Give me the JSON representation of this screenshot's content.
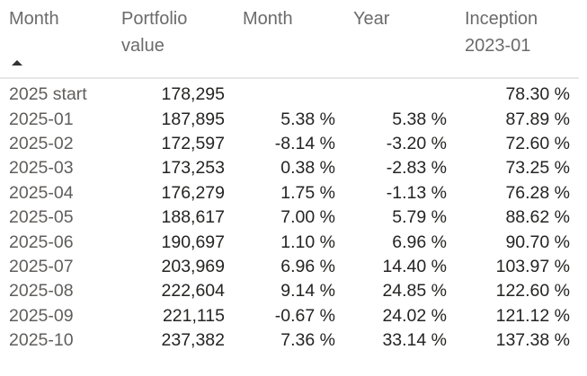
{
  "table": {
    "header": [
      "Month",
      "Portfolio value",
      "Month",
      "Year",
      "Inception 2023-01"
    ],
    "rows": [
      [
        "2025 start",
        "178,295",
        null,
        null,
        "78.30 %"
      ],
      [
        "2025-01",
        "187,895",
        "5.38 %",
        "5.38 %",
        "87.89 %"
      ],
      [
        "2025-02",
        "172,597",
        "-8.14 %",
        "-3.20 %",
        "72.60 %"
      ],
      [
        "2025-03",
        "173,253",
        "0.38 %",
        "-2.83 %",
        "73.25 %"
      ],
      [
        "2025-04",
        "176,279",
        "1.75 %",
        "-1.13 %",
        "76.28 %"
      ],
      [
        "2025-05",
        "188,617",
        "7.00 %",
        "5.79 %",
        "88.62 %"
      ],
      [
        "2025-06",
        "190,697",
        "1.10 %",
        "6.96 %",
        "90.70 %"
      ],
      [
        "2025-07",
        "203,969",
        "6.96 %",
        "14.40 %",
        "103.97 %"
      ],
      [
        "2025-08",
        "222,604",
        "9.14 %",
        "24.85 %",
        "122.60 %"
      ],
      [
        "2025-09",
        "221,115",
        "-0.67 %",
        "24.02 %",
        "121.12 %"
      ],
      [
        "2025-10",
        "237,382",
        "7.36 %",
        "33.14 %",
        "137.38 %"
      ]
    ]
  }
}
